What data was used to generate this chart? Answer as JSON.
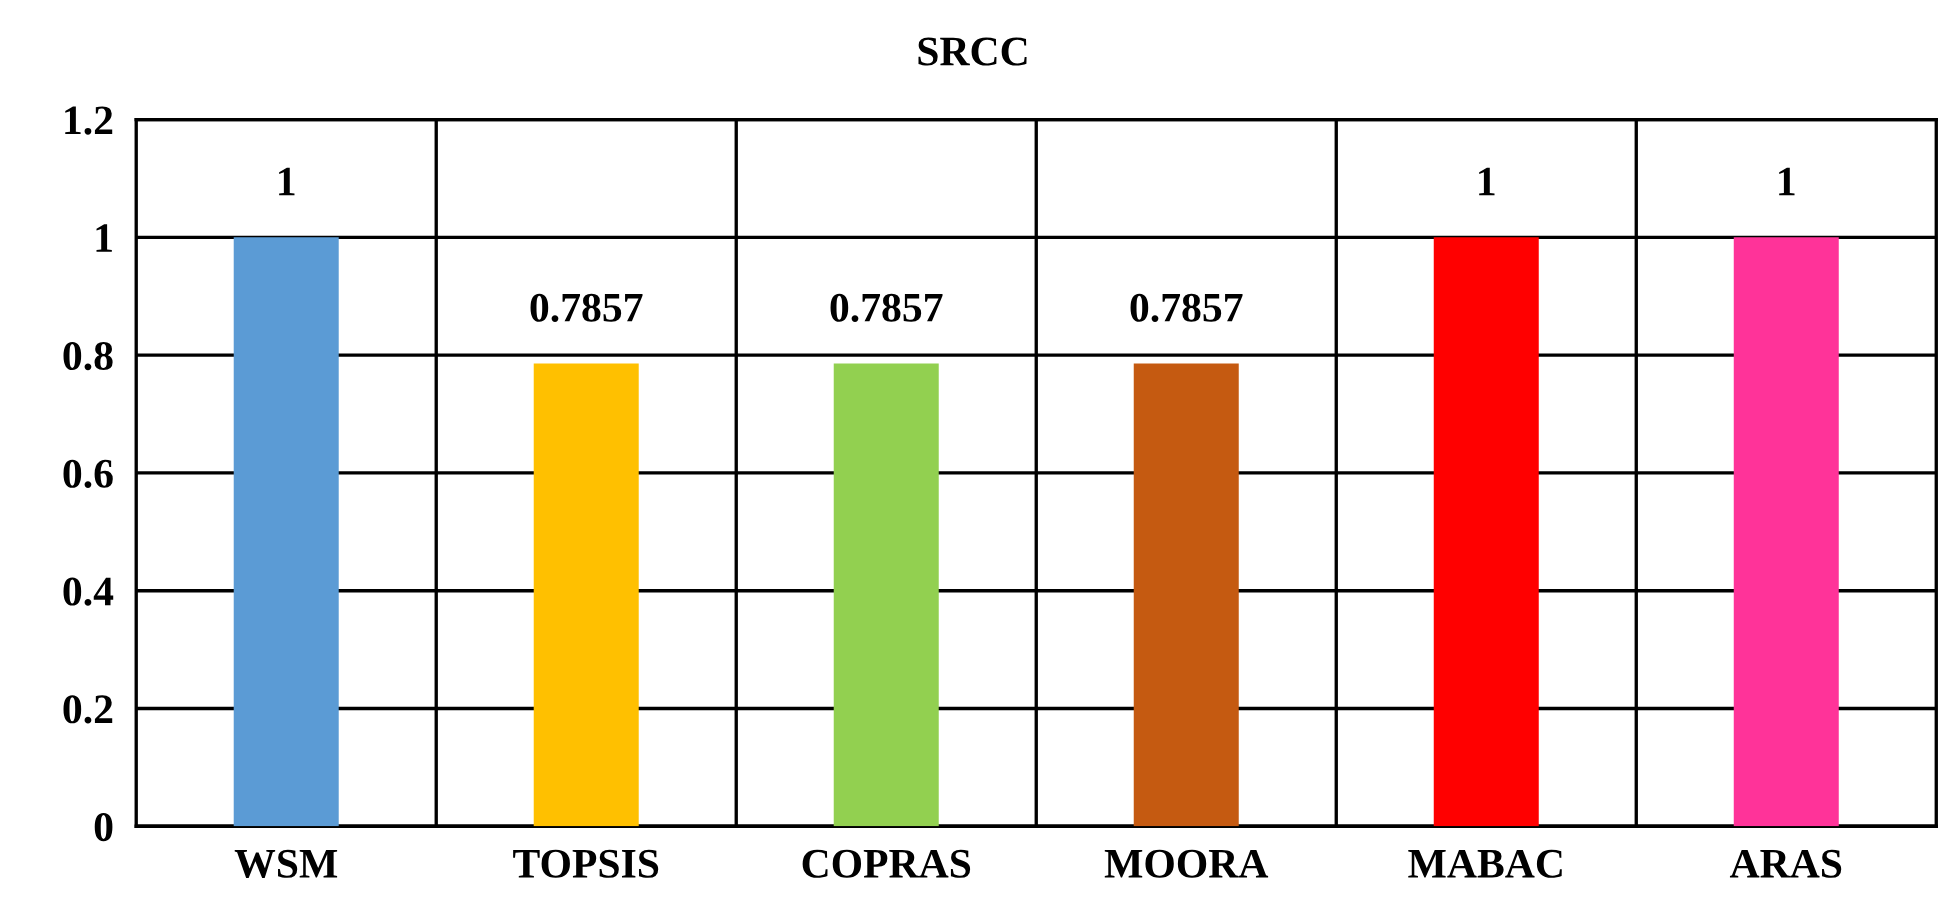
{
  "chart_data": {
    "type": "bar",
    "title": "SRCC",
    "categories": [
      "WSM",
      "TOPSIS",
      "COPRAS",
      "MOORA",
      "MABAC",
      "ARAS"
    ],
    "values": [
      1,
      0.7857,
      0.7857,
      0.7857,
      1,
      1
    ],
    "colors": [
      "#5b9bd5",
      "#ffc000",
      "#92d050",
      "#c55a11",
      "#ff0000",
      "#ff3399"
    ],
    "ylim": [
      0,
      1.2
    ],
    "yticks": [
      0,
      0.2,
      0.4,
      0.6,
      0.8,
      1,
      1.2
    ],
    "grid": true,
    "data_labels": true
  }
}
